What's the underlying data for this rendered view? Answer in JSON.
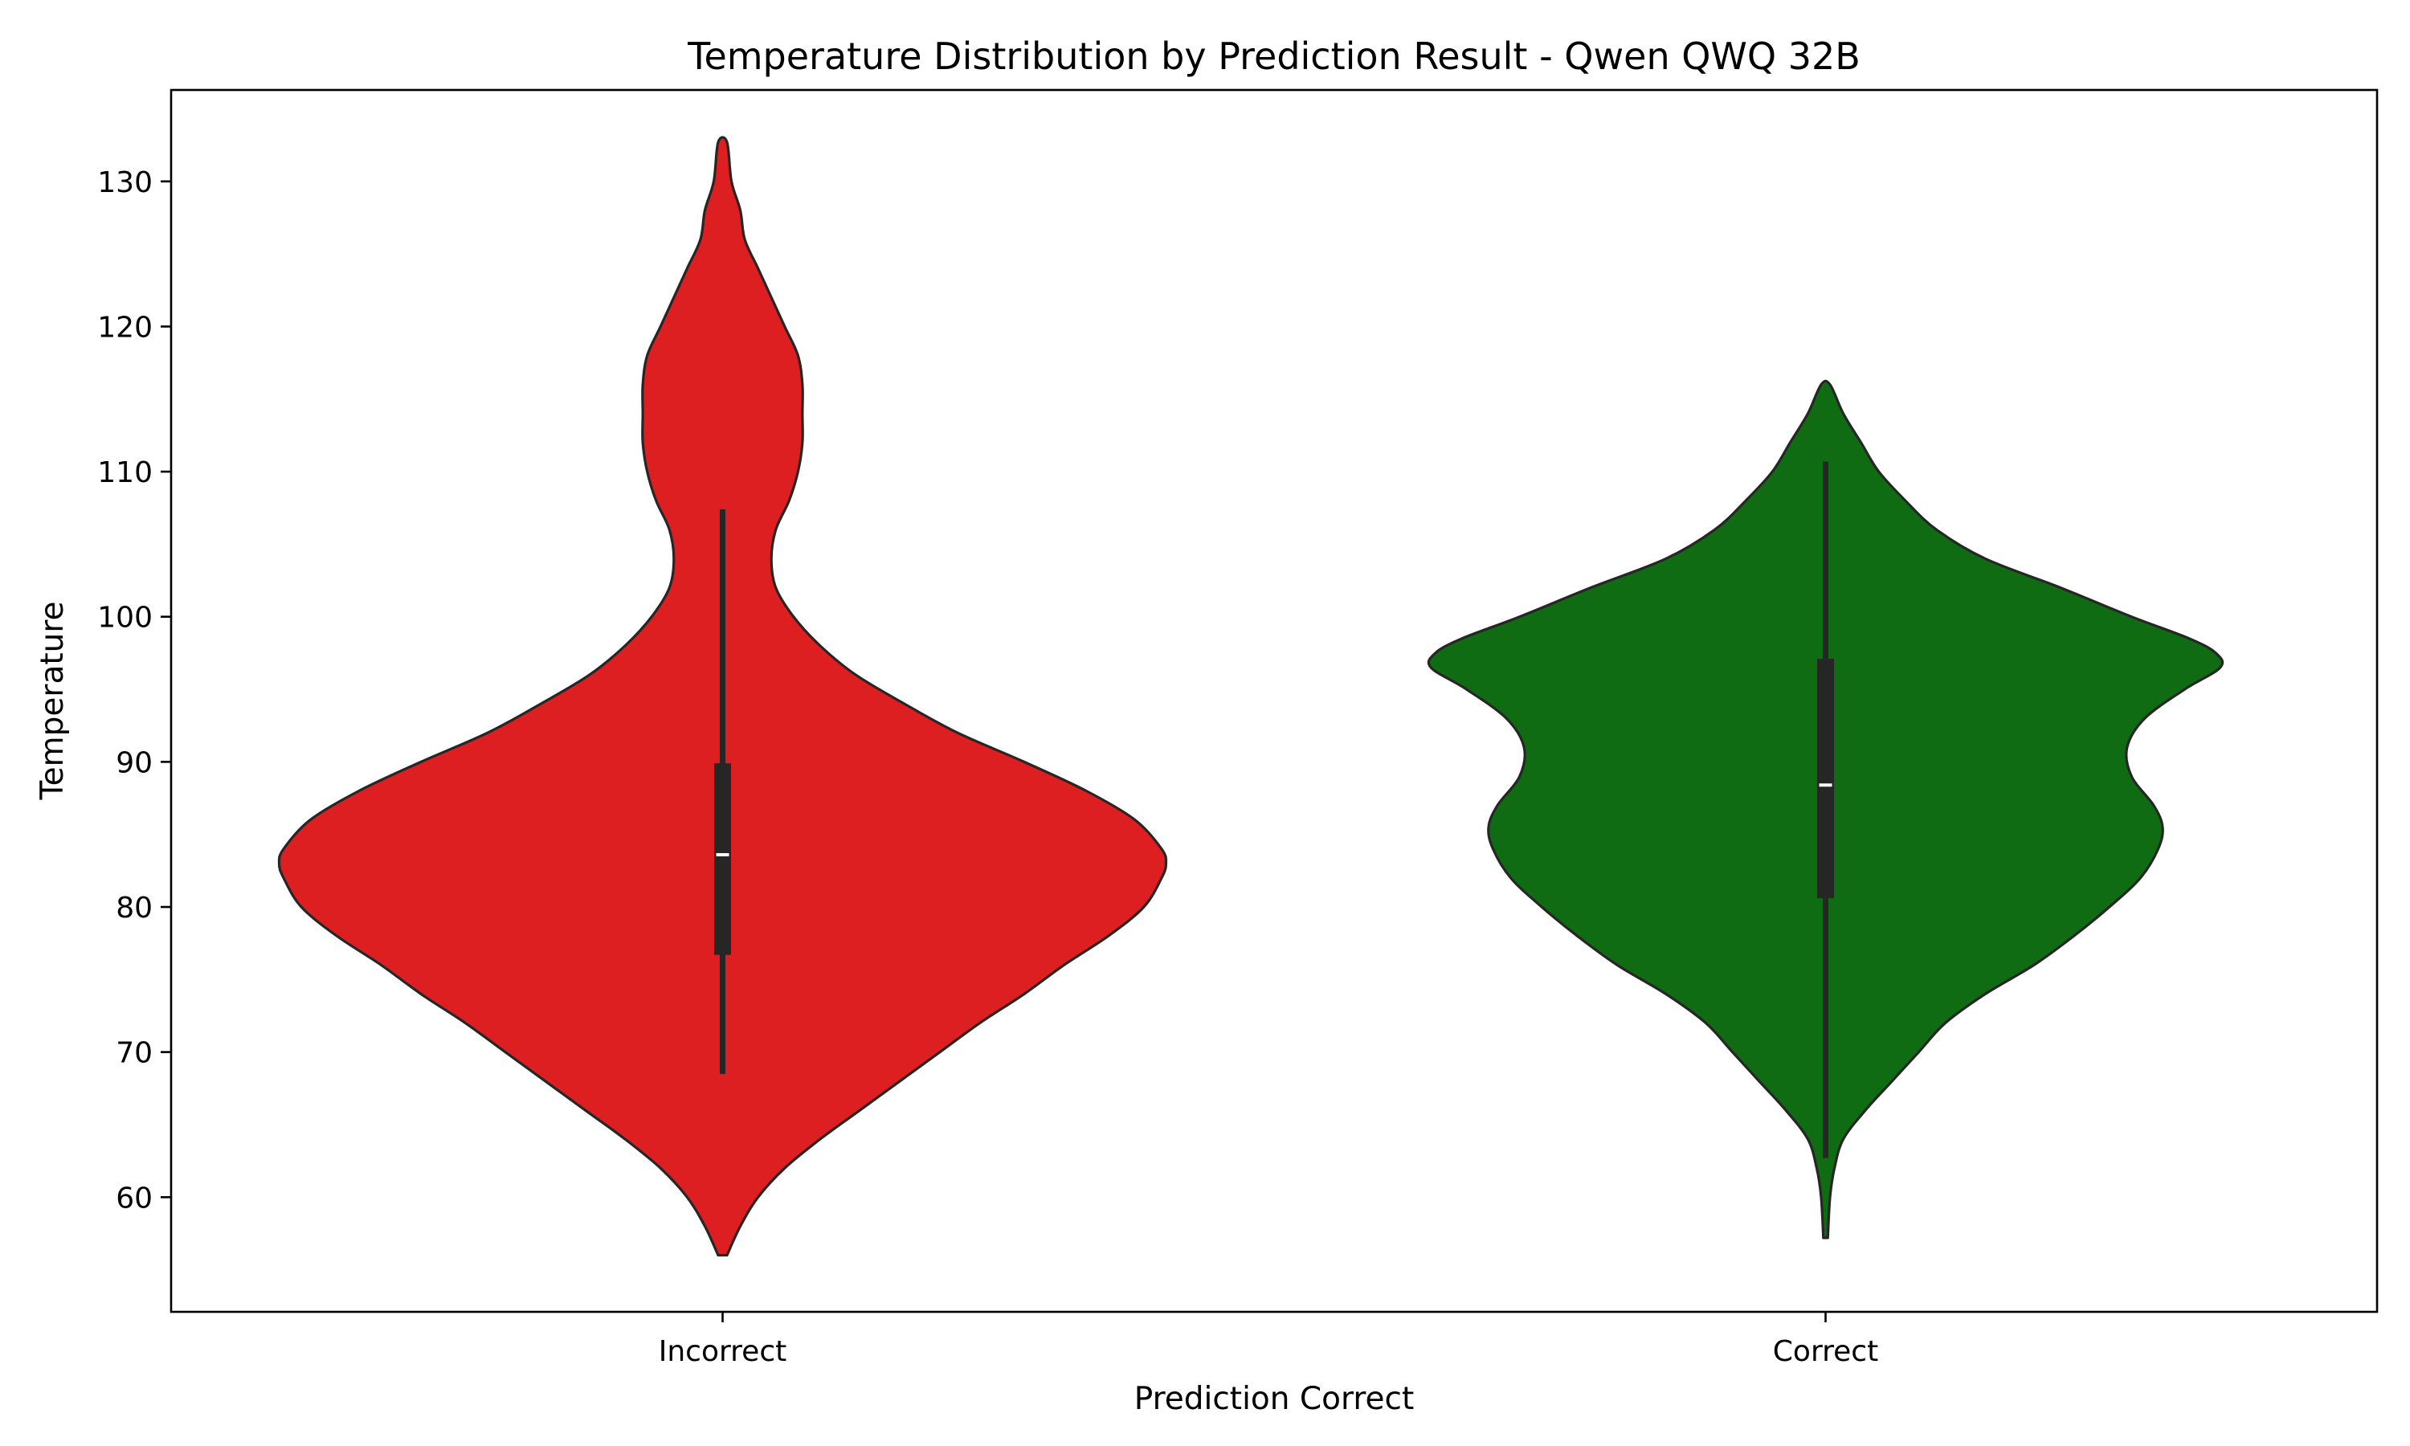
{
  "chart_data": {
    "type": "violin",
    "title": "Temperature Distribution by Prediction Result - Qwen QWQ 32B",
    "xlabel": "Prediction Correct",
    "ylabel": "Temperature",
    "ylim": [
      52.1,
      136.3
    ],
    "yticks": [
      60,
      70,
      80,
      90,
      100,
      110,
      120,
      130
    ],
    "yticks_text": [
      "60",
      "70",
      "80",
      "90",
      "100",
      "110",
      "120",
      "130"
    ],
    "grid": false,
    "categories": [
      "Incorrect",
      "Correct"
    ],
    "series": [
      {
        "category": "Incorrect",
        "color": "#dd1f21",
        "min": 56.0,
        "max": 132.7,
        "median": 83.6,
        "q1": 76.7,
        "q3": 89.9,
        "whisker_low": 68.5,
        "whisker_high": 107.4,
        "density": [
          [
            56.0,
            0.01
          ],
          [
            58.0,
            0.04
          ],
          [
            60.0,
            0.08
          ],
          [
            62.0,
            0.14
          ],
          [
            64.0,
            0.22
          ],
          [
            66.0,
            0.31
          ],
          [
            68.0,
            0.4
          ],
          [
            70.0,
            0.49
          ],
          [
            72.0,
            0.58
          ],
          [
            74.0,
            0.68
          ],
          [
            76.0,
            0.77
          ],
          [
            78.0,
            0.87
          ],
          [
            80.0,
            0.95
          ],
          [
            82.0,
            0.99
          ],
          [
            83.0,
            1.0
          ],
          [
            84.0,
            0.99
          ],
          [
            86.0,
            0.93
          ],
          [
            88.0,
            0.82
          ],
          [
            90.0,
            0.68
          ],
          [
            92.0,
            0.53
          ],
          [
            94.0,
            0.41
          ],
          [
            96.0,
            0.3
          ],
          [
            98.0,
            0.22
          ],
          [
            100.0,
            0.16
          ],
          [
            102.0,
            0.12
          ],
          [
            104.0,
            0.11
          ],
          [
            106.0,
            0.12
          ],
          [
            108.0,
            0.15
          ],
          [
            110.0,
            0.17
          ],
          [
            112.0,
            0.18
          ],
          [
            114.0,
            0.18
          ],
          [
            116.0,
            0.18
          ],
          [
            118.0,
            0.17
          ],
          [
            120.0,
            0.14
          ],
          [
            122.0,
            0.11
          ],
          [
            124.0,
            0.08
          ],
          [
            126.0,
            0.05
          ],
          [
            128.0,
            0.04
          ],
          [
            130.0,
            0.02
          ],
          [
            132.7,
            0.01
          ]
        ]
      },
      {
        "category": "Correct",
        "color": "#106c12",
        "min": 57.2,
        "max": 116.0,
        "median": 88.4,
        "q1": 80.6,
        "q3": 97.1,
        "whisker_low": 62.7,
        "whisker_high": 110.7,
        "density": [
          [
            57.2,
            0.005
          ],
          [
            60.0,
            0.01
          ],
          [
            62.0,
            0.02
          ],
          [
            64.0,
            0.04
          ],
          [
            66.0,
            0.09
          ],
          [
            68.0,
            0.15
          ],
          [
            70.0,
            0.21
          ],
          [
            72.0,
            0.27
          ],
          [
            74.0,
            0.36
          ],
          [
            76.0,
            0.47
          ],
          [
            78.0,
            0.56
          ],
          [
            80.0,
            0.64
          ],
          [
            82.0,
            0.71
          ],
          [
            84.0,
            0.75
          ],
          [
            85.5,
            0.76
          ],
          [
            87.0,
            0.74
          ],
          [
            89.0,
            0.69
          ],
          [
            91.0,
            0.68
          ],
          [
            93.0,
            0.72
          ],
          [
            95.0,
            0.81
          ],
          [
            96.5,
            0.89
          ],
          [
            97.5,
            0.88
          ],
          [
            98.5,
            0.82
          ],
          [
            100.0,
            0.69
          ],
          [
            102.0,
            0.53
          ],
          [
            104.0,
            0.36
          ],
          [
            106.0,
            0.25
          ],
          [
            108.0,
            0.18
          ],
          [
            110.0,
            0.12
          ],
          [
            112.0,
            0.08
          ],
          [
            114.0,
            0.04
          ],
          [
            116.0,
            0.01
          ]
        ]
      }
    ]
  }
}
